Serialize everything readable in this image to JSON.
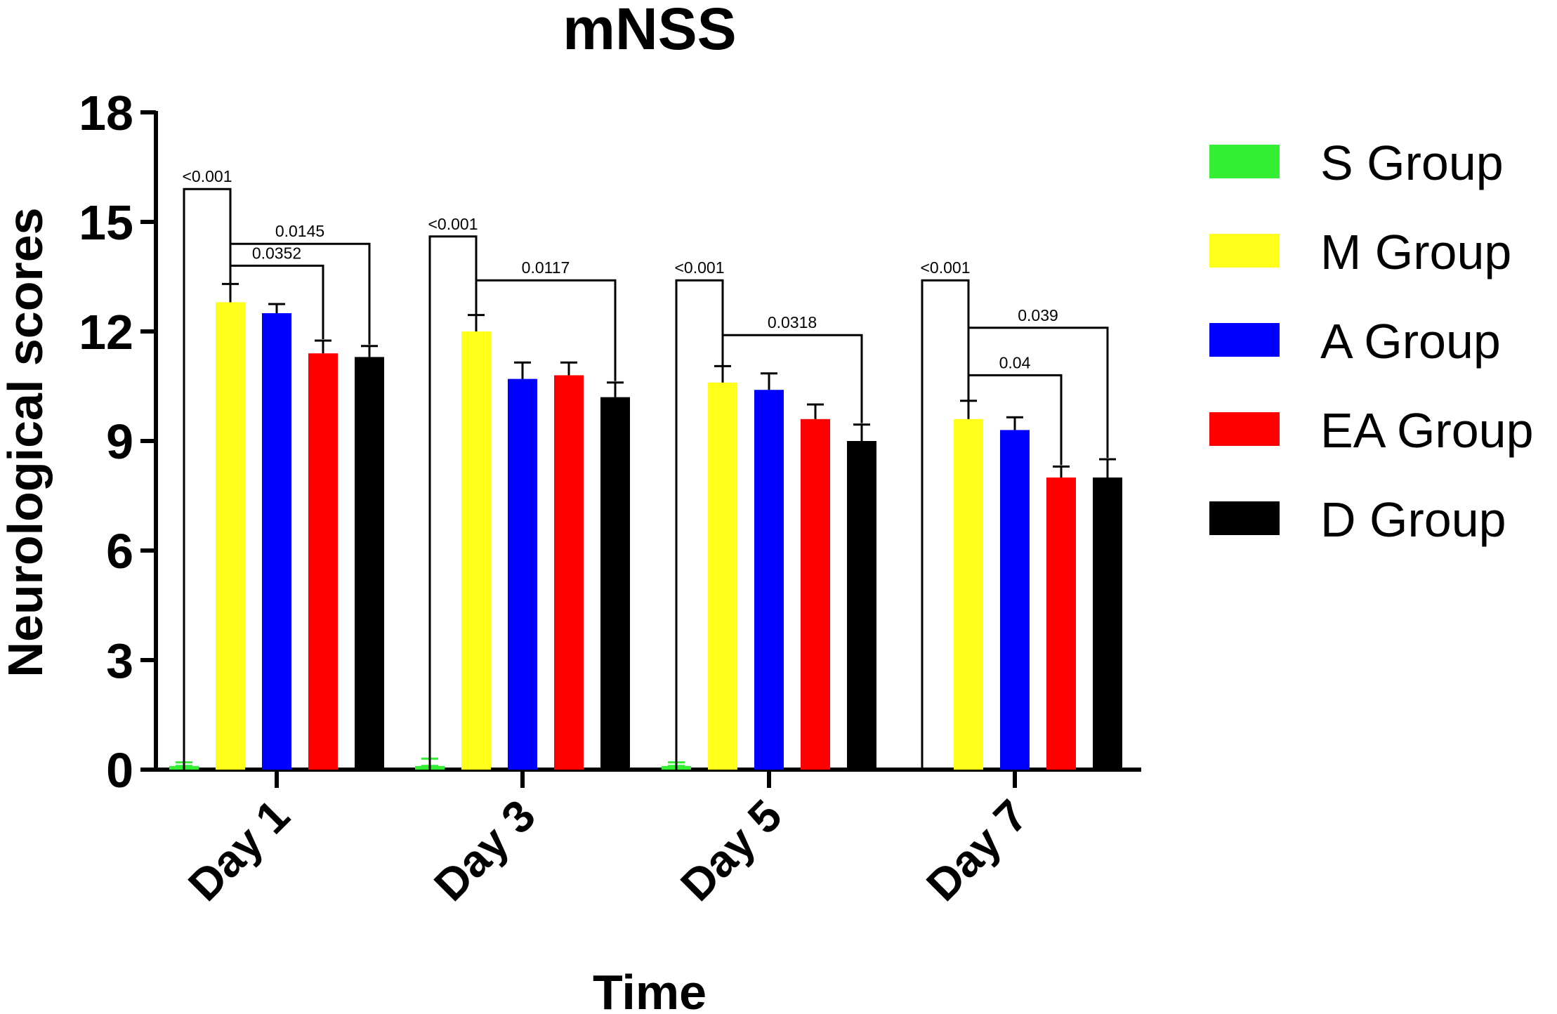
{
  "chart_data": {
    "type": "bar",
    "title": "mNSS",
    "xlabel": "Time",
    "ylabel": "Neurological scores",
    "ylim": [
      0,
      18
    ],
    "yticks": [
      0,
      3,
      6,
      9,
      12,
      15,
      18
    ],
    "categories": [
      "Day 1",
      "Day 3",
      "Day 5",
      "Day 7"
    ],
    "legend_position": "right",
    "series": [
      {
        "name": "S Group",
        "color": "#33ee33",
        "values": [
          0.1,
          0.1,
          0.1,
          0.0
        ],
        "errors": [
          0.1,
          0.2,
          0.1,
          0.0
        ]
      },
      {
        "name": "M Group",
        "color": "#ffff1a",
        "values": [
          12.8,
          12.0,
          10.6,
          9.6
        ],
        "errors": [
          0.5,
          0.45,
          0.45,
          0.5
        ]
      },
      {
        "name": "A Group",
        "color": "#0000ff",
        "values": [
          12.5,
          10.7,
          10.4,
          9.3
        ],
        "errors": [
          0.25,
          0.45,
          0.45,
          0.35
        ]
      },
      {
        "name": "EA Group",
        "color": "#ff0000",
        "values": [
          11.4,
          10.8,
          9.6,
          8.0
        ],
        "errors": [
          0.35,
          0.35,
          0.4,
          0.3
        ]
      },
      {
        "name": "D Group",
        "color": "#000000",
        "values": [
          11.3,
          10.2,
          9.0,
          8.0
        ],
        "errors": [
          0.3,
          0.4,
          0.45,
          0.5
        ]
      }
    ],
    "annotations": [
      {
        "category": 0,
        "from": 0,
        "to": 1,
        "level": 15.9,
        "label": "<0.001"
      },
      {
        "category": 0,
        "from": 1,
        "to": 4,
        "level": 14.4,
        "label": "0.0145"
      },
      {
        "category": 0,
        "from": 1,
        "to": 3,
        "level": 13.8,
        "label": "0.0352"
      },
      {
        "category": 1,
        "from": 0,
        "to": 1,
        "level": 14.6,
        "label": "<0.001"
      },
      {
        "category": 1,
        "from": 1,
        "to": 4,
        "level": 13.4,
        "label": "0.0117"
      },
      {
        "category": 2,
        "from": 0,
        "to": 1,
        "level": 13.4,
        "label": "<0.001"
      },
      {
        "category": 2,
        "from": 1,
        "to": 4,
        "level": 11.9,
        "label": "0.0318"
      },
      {
        "category": 3,
        "from": 0,
        "to": 1,
        "level": 13.4,
        "label": "<0.001"
      },
      {
        "category": 3,
        "from": 1,
        "to": 4,
        "level": 12.1,
        "label": "0.039"
      },
      {
        "category": 3,
        "from": 1,
        "to": 3,
        "level": 10.8,
        "label": "0.04"
      }
    ]
  }
}
